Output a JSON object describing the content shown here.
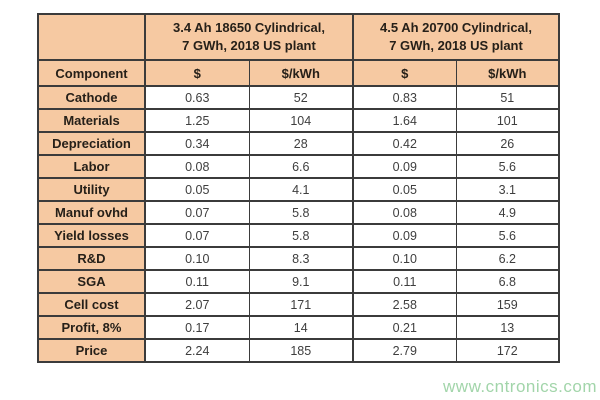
{
  "chart_data": {
    "type": "table",
    "group_headers": [
      {
        "line1": "3.4 Ah 18650 Cylindrical,",
        "line2": "7 GWh, 2018 US plant"
      },
      {
        "line1": "4.5 Ah 20700 Cylindrical,",
        "line2": "7 GWh, 2018 US plant"
      }
    ],
    "column_headers": [
      "Component",
      "$",
      "$/kWh",
      "$",
      "$/kWh"
    ],
    "rows": [
      {
        "component": "Cathode",
        "values": [
          "0.63",
          "52",
          "0.83",
          "51"
        ]
      },
      {
        "component": "Materials",
        "values": [
          "1.25",
          "104",
          "1.64",
          "101"
        ]
      },
      {
        "component": "Depreciation",
        "values": [
          "0.34",
          "28",
          "0.42",
          "26"
        ]
      },
      {
        "component": "Labor",
        "values": [
          "0.08",
          "6.6",
          "0.09",
          "5.6"
        ]
      },
      {
        "component": "Utility",
        "values": [
          "0.05",
          "4.1",
          "0.05",
          "3.1"
        ]
      },
      {
        "component": "Manuf ovhd",
        "values": [
          "0.07",
          "5.8",
          "0.08",
          "4.9"
        ]
      },
      {
        "component": "Yield losses",
        "values": [
          "0.07",
          "5.8",
          "0.09",
          "5.6"
        ]
      },
      {
        "component": "R&D",
        "values": [
          "0.10",
          "8.3",
          "0.10",
          "6.2"
        ]
      },
      {
        "component": "SGA",
        "values": [
          "0.11",
          "9.1",
          "0.11",
          "6.8"
        ]
      },
      {
        "component": "Cell cost",
        "values": [
          "2.07",
          "171",
          "2.58",
          "159"
        ]
      },
      {
        "component": "Profit, 8%",
        "values": [
          "0.17",
          "14",
          "0.21",
          "13"
        ]
      },
      {
        "component": "Price",
        "values": [
          "2.24",
          "185",
          "2.79",
          "172"
        ]
      }
    ]
  },
  "watermark": {
    "text": "www.cntronics.com"
  },
  "colors": {
    "page_bg": "#ffffff",
    "header_bg": "#f6c9a2",
    "border": "#3b3b3b",
    "label_text": "#262019",
    "value_text": "#3e3e3e",
    "watermark": "#a2d5aa"
  }
}
